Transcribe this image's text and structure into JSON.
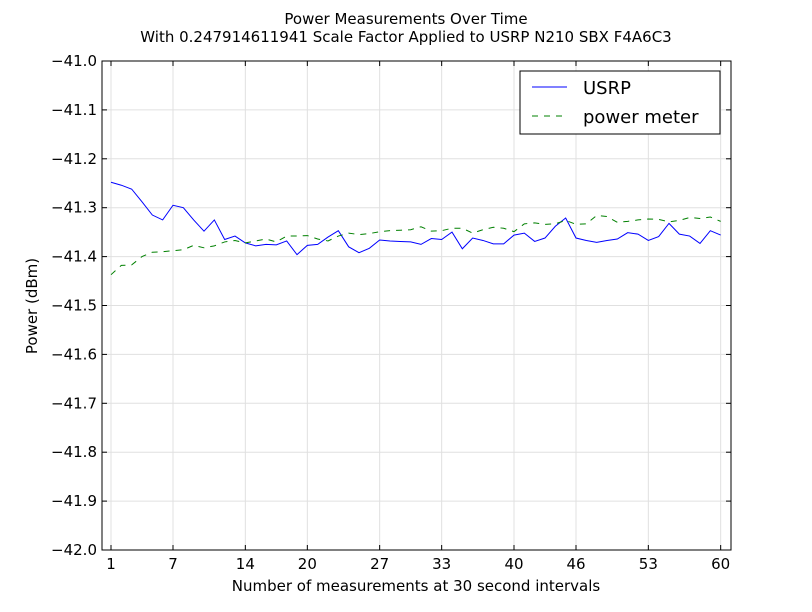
{
  "chart_data": {
    "type": "line",
    "title": "Power Measurements Over Time",
    "subtitle": "With 0.247914611941 Scale Factor Applied to USRP N210 SBX F4A6C3",
    "xlabel": "Number of measurements at 30 second intervals",
    "ylabel": "Power (dBm)",
    "xlim": [
      0,
      60
    ],
    "ylim": [
      -42.0,
      -41.0
    ],
    "x_ticks": [
      0,
      6,
      13,
      19,
      26,
      32,
      39,
      45,
      52,
      59
    ],
    "x_tick_labels": [
      "1",
      "7",
      "14",
      "20",
      "27",
      "33",
      "40",
      "46",
      "53",
      "60"
    ],
    "y_ticks": [
      -41.0,
      -41.1,
      -41.2,
      -41.3,
      -41.4,
      -41.5,
      -41.6,
      -41.7,
      -41.8,
      -41.9,
      -42.0
    ],
    "y_tick_labels": [
      "−41.0",
      "−41.1",
      "−41.2",
      "−41.3",
      "−41.4",
      "−41.5",
      "−41.6",
      "−41.7",
      "−41.8",
      "−41.9",
      "−42.0"
    ],
    "grid": true,
    "legend_position": "top-right",
    "x": [
      0,
      1,
      2,
      3,
      4,
      5,
      6,
      7,
      8,
      9,
      10,
      11,
      12,
      13,
      14,
      15,
      16,
      17,
      18,
      19,
      20,
      21,
      22,
      23,
      24,
      25,
      26,
      27,
      28,
      29,
      30,
      31,
      32,
      33,
      34,
      35,
      36,
      37,
      38,
      39,
      40,
      41,
      42,
      43,
      44,
      45,
      46,
      47,
      48,
      49,
      50,
      51,
      52,
      53,
      54,
      55,
      56,
      57,
      58,
      59
    ],
    "series": [
      {
        "name": "USRP",
        "color": "#0000ff",
        "style": "solid",
        "values": [
          -41.248,
          -41.254,
          -41.262,
          -41.288,
          -41.315,
          -41.325,
          -41.295,
          -41.3,
          -41.325,
          -41.348,
          -41.325,
          -41.365,
          -41.358,
          -41.372,
          -41.378,
          -41.375,
          -41.376,
          -41.368,
          -41.396,
          -41.377,
          -41.375,
          -41.36,
          -41.347,
          -41.38,
          -41.392,
          -41.383,
          -41.366,
          -41.368,
          -41.369,
          -41.37,
          -41.375,
          -41.363,
          -41.365,
          -41.35,
          -41.384,
          -41.362,
          -41.367,
          -41.374,
          -41.374,
          -41.356,
          -41.352,
          -41.369,
          -41.362,
          -41.338,
          -41.321,
          -41.362,
          -41.367,
          -41.371,
          -41.367,
          -41.364,
          -41.351,
          -41.354,
          -41.367,
          -41.359,
          -41.332,
          -41.354,
          -41.358,
          -41.373,
          -41.347,
          -41.356
        ]
      },
      {
        "name": "power meter",
        "color": "#008000",
        "style": "dashed",
        "values": [
          -41.437,
          -41.418,
          -41.417,
          -41.4,
          -41.391,
          -41.39,
          -41.388,
          -41.386,
          -41.377,
          -41.382,
          -41.378,
          -41.37,
          -41.367,
          -41.372,
          -41.368,
          -41.364,
          -41.37,
          -41.358,
          -41.358,
          -41.357,
          -41.364,
          -41.368,
          -41.358,
          -41.352,
          -41.355,
          -41.353,
          -41.349,
          -41.347,
          -41.346,
          -41.345,
          -41.339,
          -41.348,
          -41.347,
          -41.342,
          -41.342,
          -41.352,
          -41.345,
          -41.34,
          -41.342,
          -41.349,
          -41.333,
          -41.331,
          -41.334,
          -41.333,
          -41.326,
          -41.334,
          -41.333,
          -41.316,
          -41.318,
          -41.33,
          -41.328,
          -41.325,
          -41.323,
          -41.324,
          -41.329,
          -41.326,
          -41.32,
          -41.322,
          -41.319,
          -41.328
        ]
      }
    ]
  }
}
